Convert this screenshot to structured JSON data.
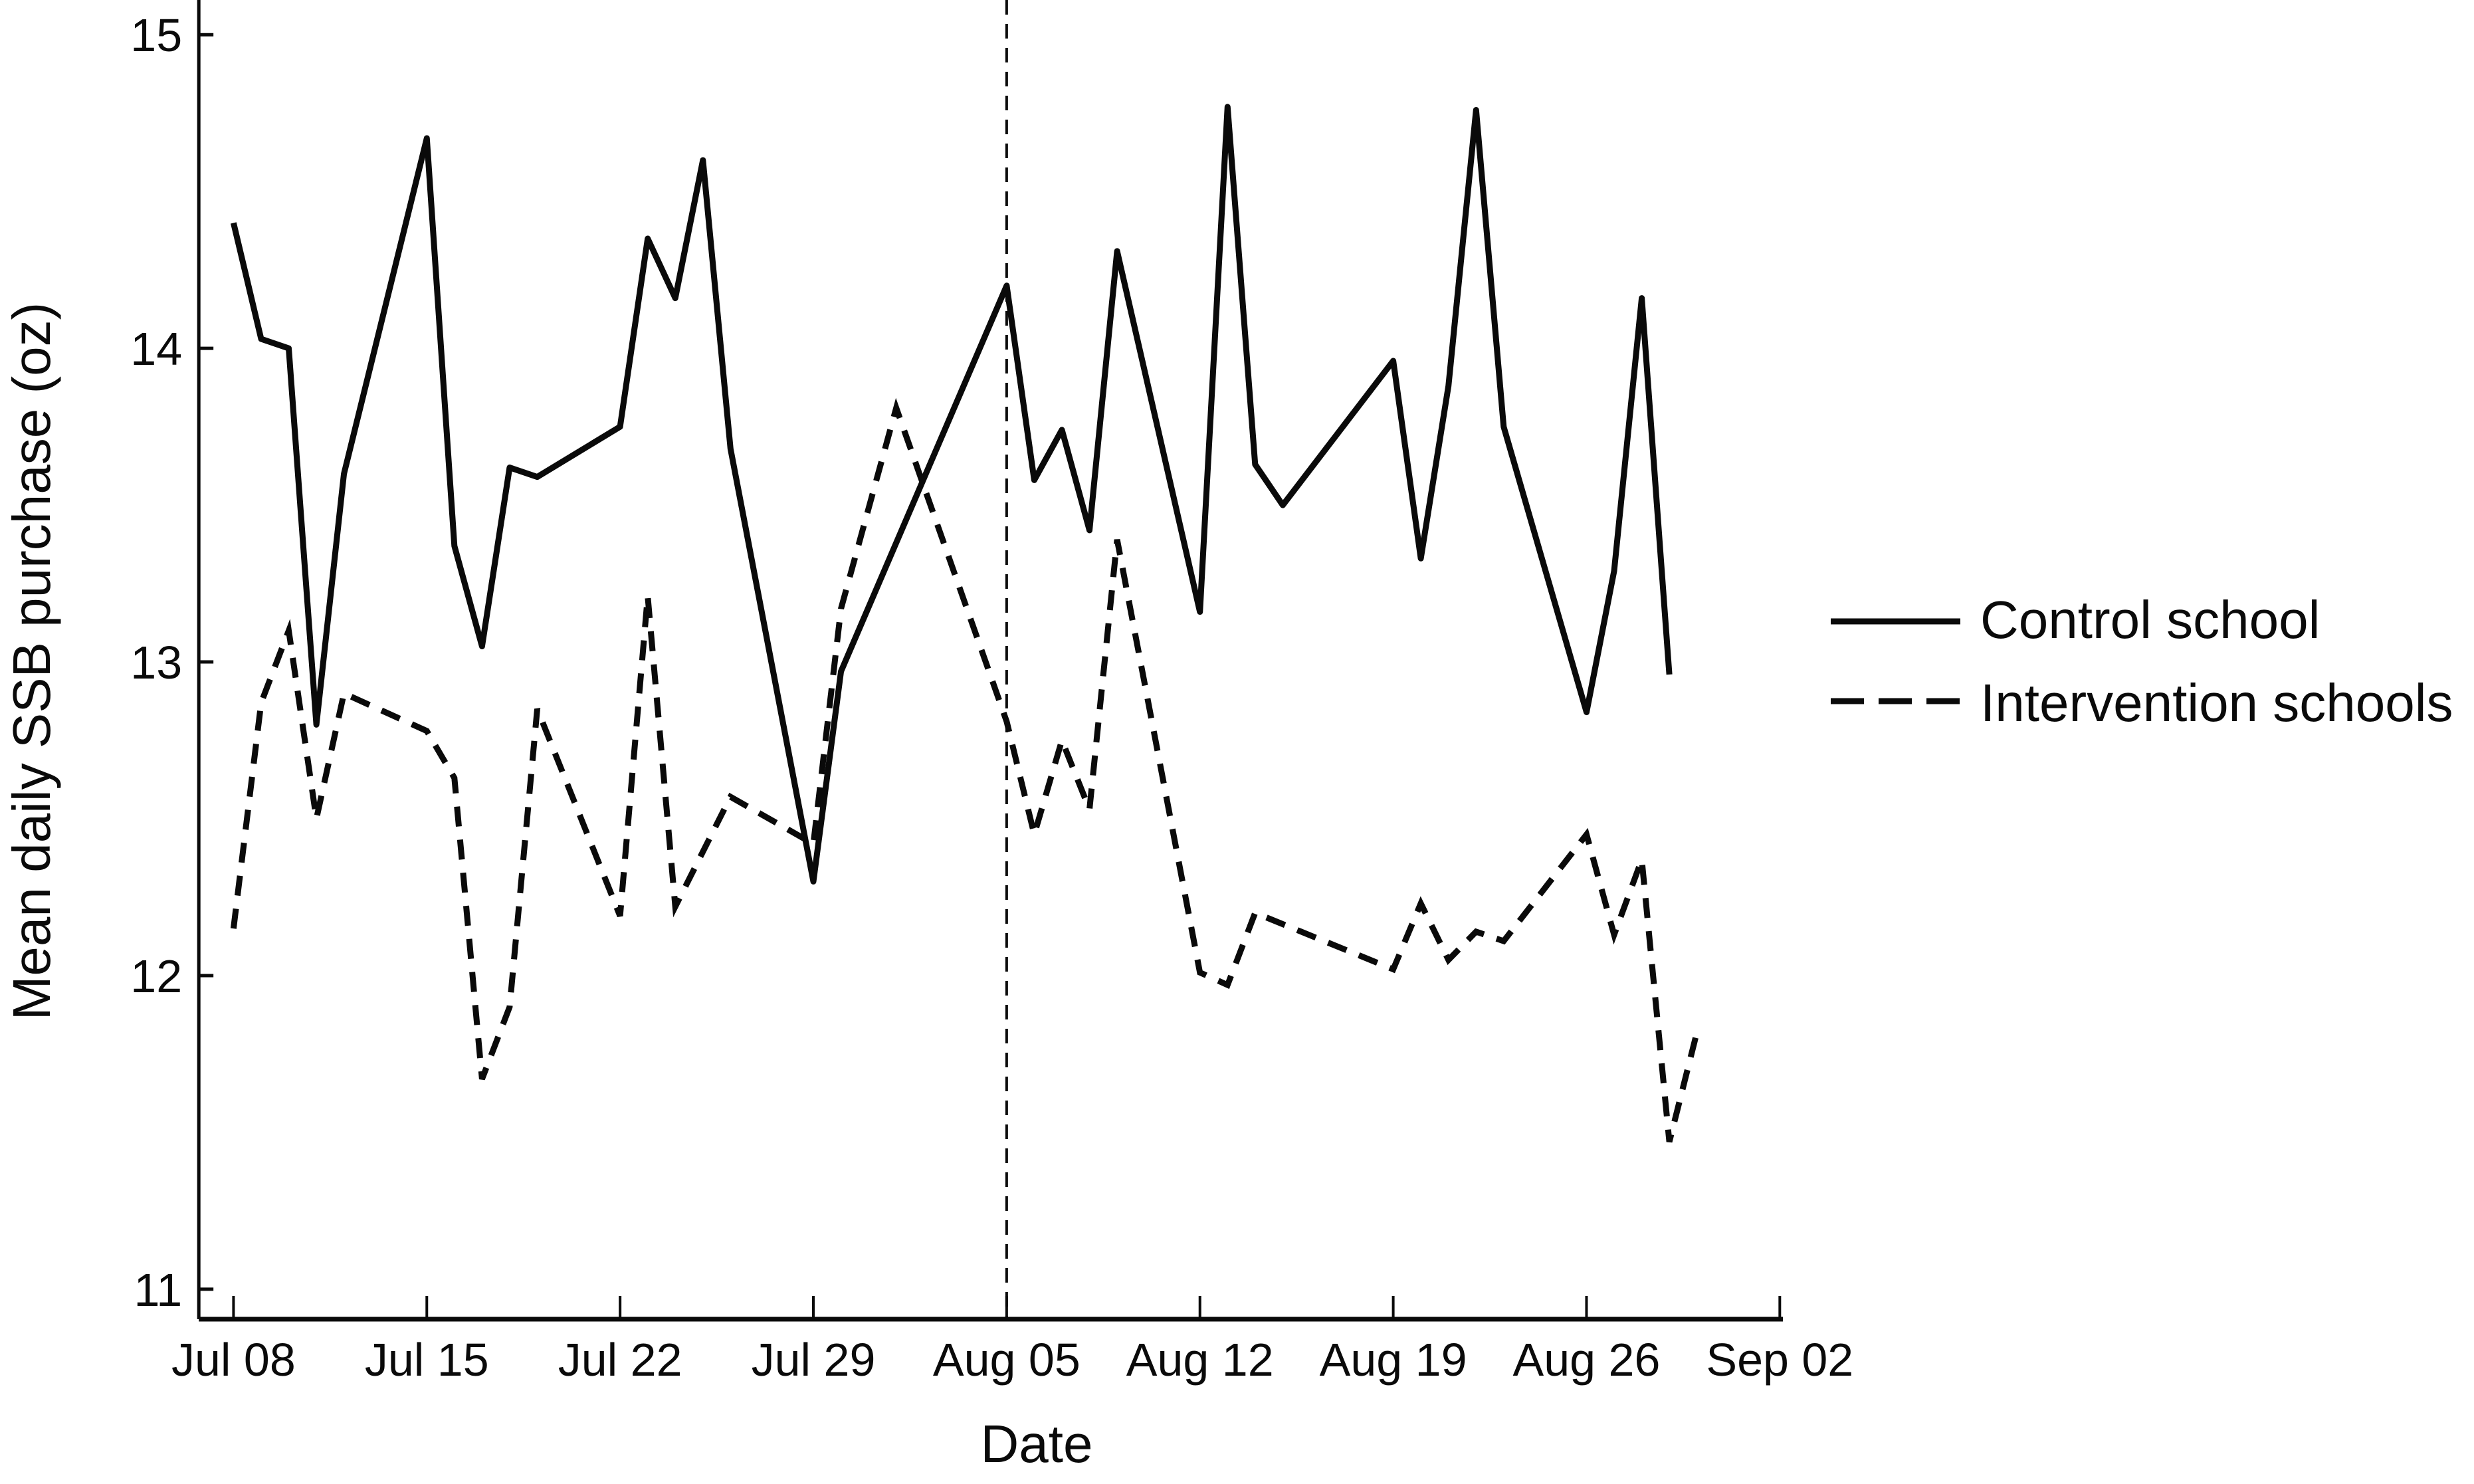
{
  "chart_data": {
    "type": "line",
    "title": "",
    "xlabel": "Date",
    "ylabel": "Mean daily SSB purchase (oz)",
    "ylim": [
      11,
      15
    ],
    "yticks": [
      11,
      12,
      13,
      14,
      15
    ],
    "xticks": [
      "Jul 08",
      "Jul 15",
      "Jul 22",
      "Jul 29",
      "Aug 05",
      "Aug 12",
      "Aug 19",
      "Aug 26",
      "Sep 02"
    ],
    "grid": false,
    "legend_position": "right",
    "annotations": [
      {
        "type": "vertical-dashed-line",
        "x": "Aug 05"
      }
    ],
    "series": [
      {
        "name": "Control school",
        "style": "solid",
        "day_offsets": [
          0,
          1,
          2,
          3,
          4,
          7,
          8,
          9,
          10,
          11,
          14,
          15,
          16,
          17,
          18,
          21,
          22,
          28,
          29,
          30,
          31,
          32,
          35,
          36,
          37,
          38,
          42,
          43,
          44,
          45,
          46,
          49,
          50,
          51,
          52
        ],
        "values": [
          14.4,
          14.03,
          14.0,
          12.8,
          13.6,
          14.67,
          13.37,
          13.05,
          13.62,
          13.59,
          13.75,
          14.35,
          14.16,
          14.6,
          13.68,
          12.3,
          12.97,
          14.2,
          13.58,
          13.74,
          13.42,
          14.31,
          13.16,
          14.77,
          13.63,
          13.5,
          13.96,
          13.33,
          13.88,
          14.76,
          13.75,
          12.84,
          13.29,
          14.16,
          12.96
        ]
      },
      {
        "name": "Intervention schools",
        "style": "dashed",
        "day_offsets": [
          0,
          1,
          2,
          3,
          4,
          7,
          8,
          9,
          10,
          11,
          14,
          15,
          16,
          18,
          21,
          22,
          24,
          28,
          29,
          30,
          31,
          32,
          35,
          36,
          37,
          42,
          43,
          44,
          45,
          46,
          49,
          50,
          51,
          52,
          53
        ],
        "values": [
          12.15,
          12.87,
          13.1,
          12.5,
          12.9,
          12.78,
          12.63,
          11.67,
          11.9,
          12.85,
          12.19,
          13.21,
          12.22,
          12.57,
          12.42,
          13.17,
          13.81,
          12.81,
          12.45,
          12.75,
          12.53,
          13.39,
          12.01,
          11.97,
          12.2,
          12.02,
          12.23,
          12.05,
          12.14,
          12.11,
          12.45,
          12.13,
          12.37,
          11.47,
          11.82
        ]
      }
    ]
  },
  "legend": {
    "items": [
      {
        "label": "Control school",
        "style": "solid"
      },
      {
        "label": "Intervention schools",
        "style": "dashed"
      }
    ]
  },
  "axes": {
    "x_title": "Date",
    "y_title": "Mean daily SSB purchase (oz)"
  },
  "colors": {
    "line": "#0a0a0a",
    "background": "#ffffff"
  }
}
